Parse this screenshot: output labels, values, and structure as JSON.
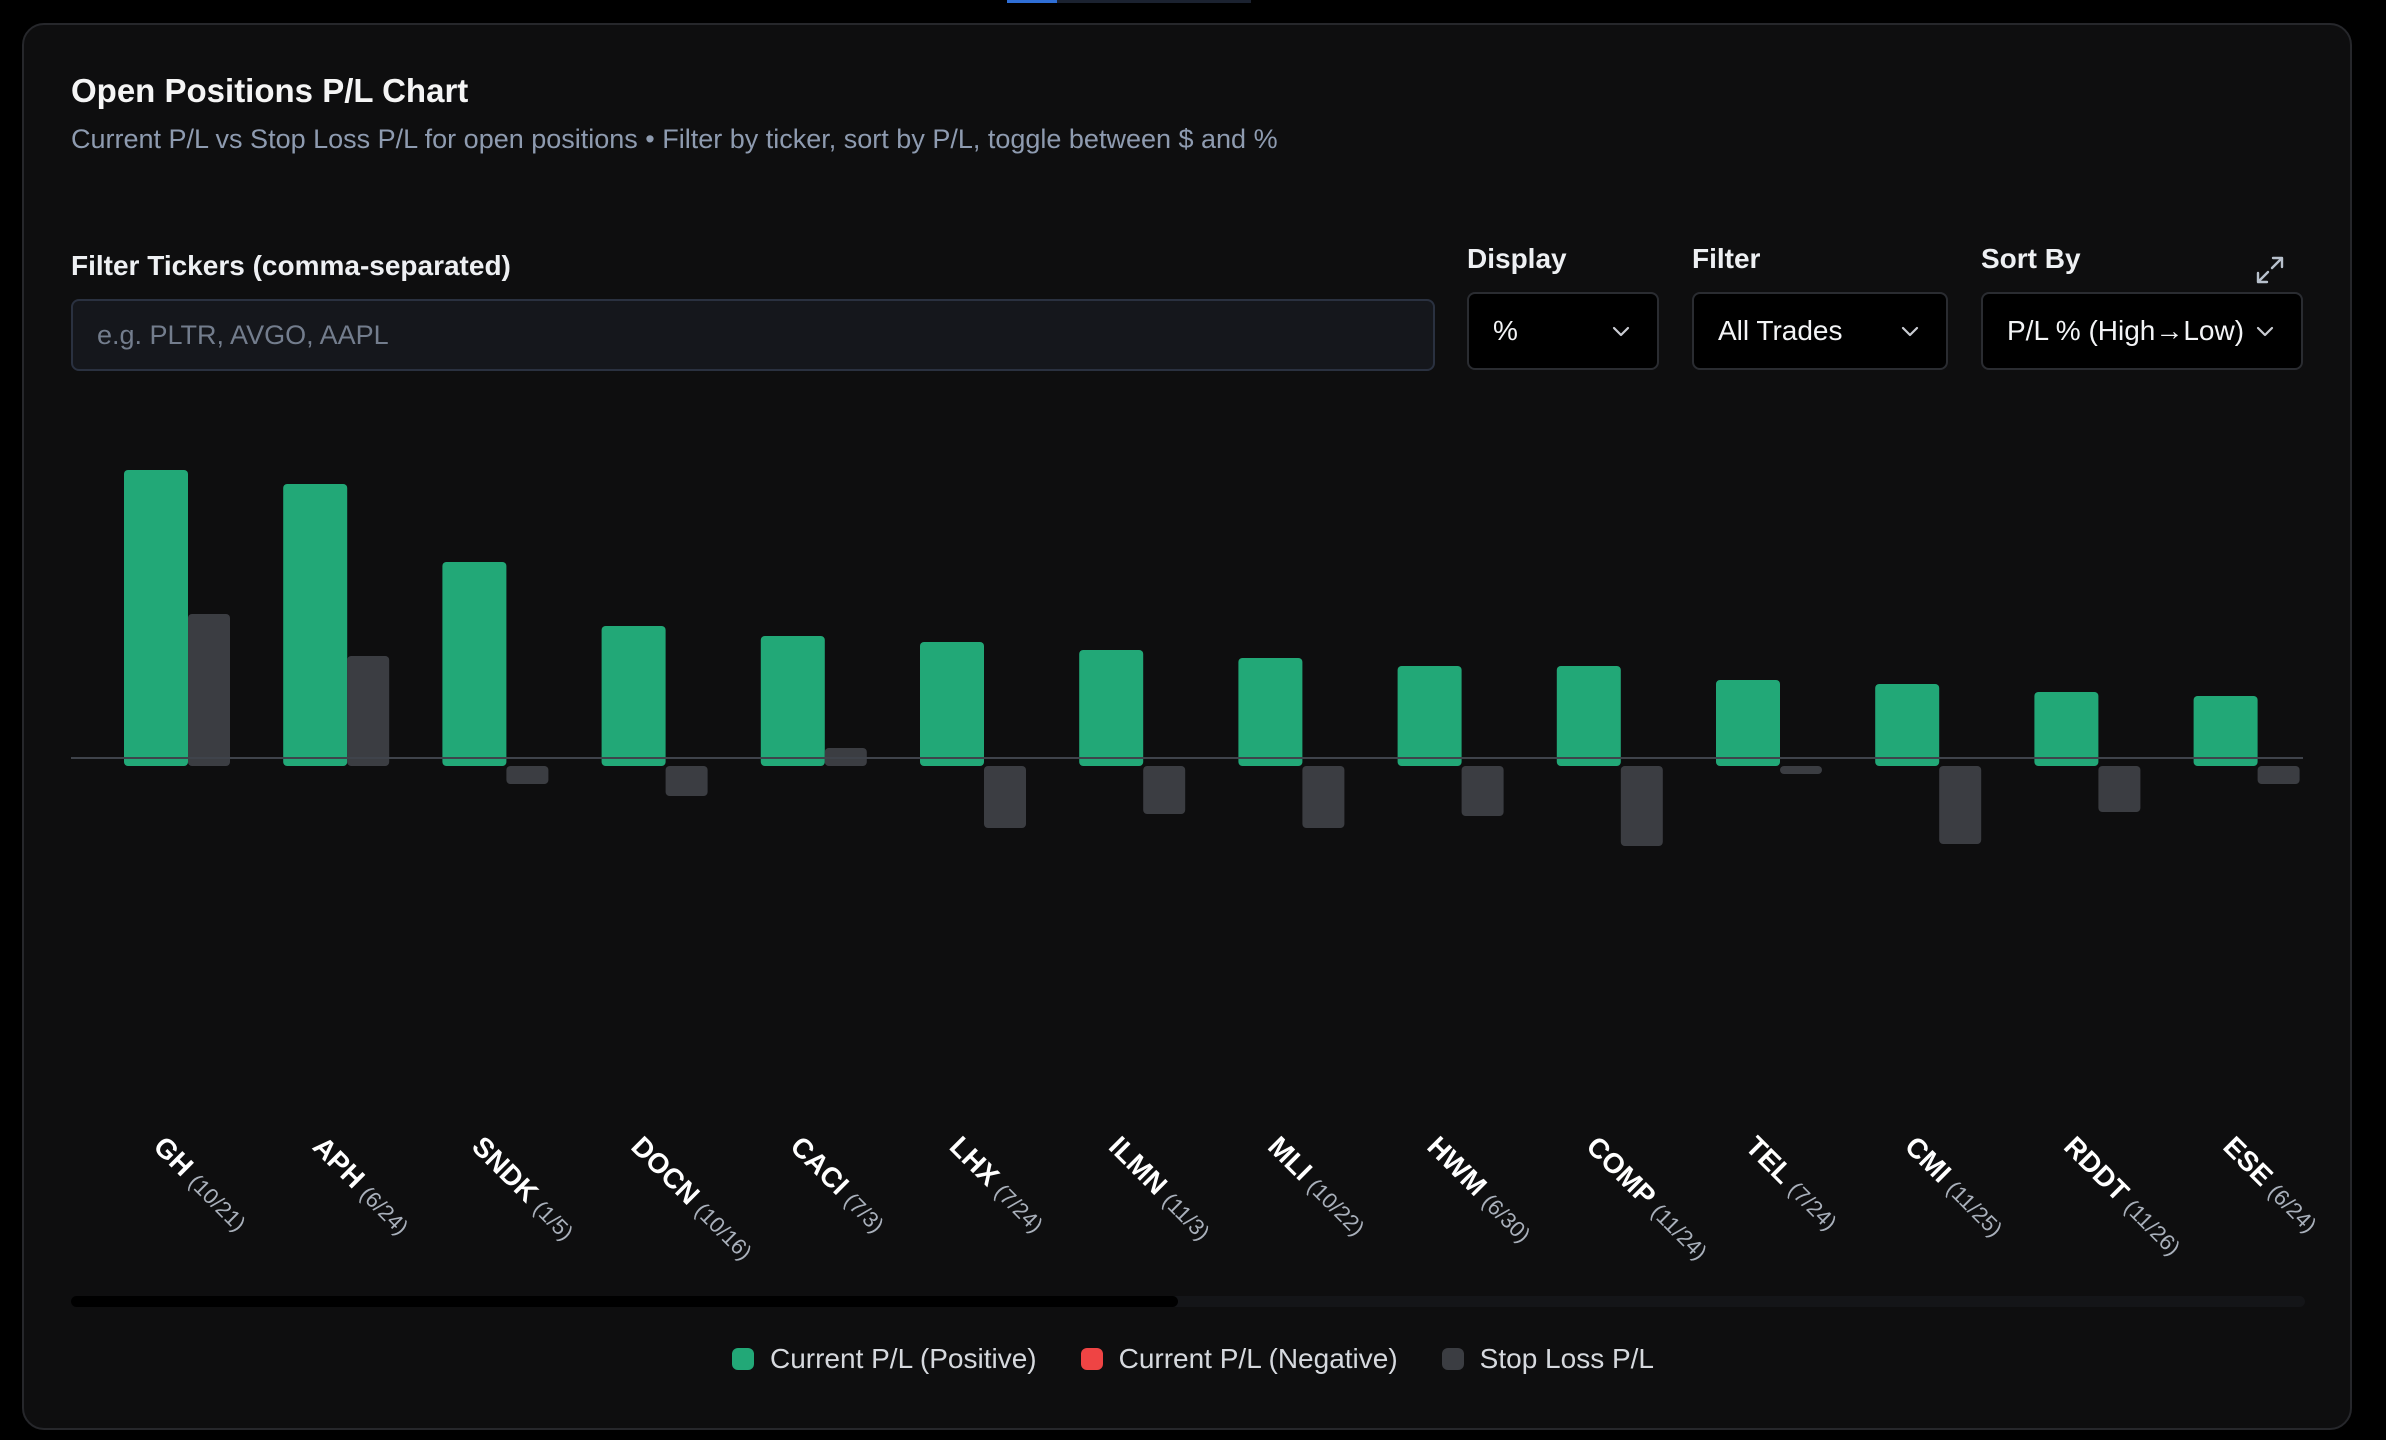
{
  "header": {
    "title": "Open Positions P/L Chart",
    "subtitle": "Current P/L vs Stop Loss P/L for open positions • Filter by ticker, sort by P/L, toggle between $ and %"
  },
  "controls": {
    "ticker_filter": {
      "label": "Filter Tickers (comma-separated)",
      "placeholder": "e.g. PLTR, AVGO, AAPL",
      "value": ""
    },
    "display": {
      "label": "Display",
      "value": "%"
    },
    "filter": {
      "label": "Filter",
      "value": "All Trades"
    },
    "sort": {
      "label": "Sort By",
      "value": "P/L % (High→Low)"
    },
    "expand_icon": "expand-icon",
    "chevron_icon": "chevron-down-icon"
  },
  "chart_data": {
    "type": "bar",
    "title": "",
    "xlabel": "",
    "ylabel": "",
    "grid": false,
    "legend_position": "bottom-center",
    "categories": [
      {
        "ticker": "GH",
        "date": "(10/21)"
      },
      {
        "ticker": "APH",
        "date": "(6/24)"
      },
      {
        "ticker": "SNDK",
        "date": "(1/5)"
      },
      {
        "ticker": "DOCN",
        "date": "(10/16)"
      },
      {
        "ticker": "CACI",
        "date": "(7/3)"
      },
      {
        "ticker": "LHX",
        "date": "(7/24)"
      },
      {
        "ticker": "ILMN",
        "date": "(11/3)"
      },
      {
        "ticker": "MLI",
        "date": "(10/22)"
      },
      {
        "ticker": "HWM",
        "date": "(6/30)"
      },
      {
        "ticker": "COMP",
        "date": "(11/24)"
      },
      {
        "ticker": "TEL",
        "date": "(7/24)"
      },
      {
        "ticker": "CMI",
        "date": "(11/25)"
      },
      {
        "ticker": "RDDT",
        "date": "(11/26)"
      },
      {
        "ticker": "ESE",
        "date": "(6/24)"
      }
    ],
    "series": [
      {
        "name": "Current P/L (Positive)",
        "color": "#22a877",
        "values": [
          74,
          70.5,
          51,
          35,
          32.5,
          31,
          29,
          27,
          25,
          25,
          21.5,
          20.5,
          18.5,
          17.5
        ]
      },
      {
        "name": "Current P/L (Negative)",
        "color": "#ef4444",
        "values": [
          0,
          0,
          0,
          0,
          0,
          0,
          0,
          0,
          0,
          0,
          0,
          0,
          0,
          0
        ]
      },
      {
        "name": "Stop Loss P/L",
        "color": "#3b3d42",
        "values": [
          38,
          27.5,
          -4.5,
          -7.5,
          4.5,
          -15.5,
          -12,
          -15.5,
          -12.5,
          -20,
          -2,
          -19.5,
          -11.5,
          -4.5
        ]
      }
    ]
  },
  "legend": [
    {
      "label": "Current P/L (Positive)",
      "color": "#22a877"
    },
    {
      "label": "Current P/L (Negative)",
      "color": "#ef4444"
    },
    {
      "label": "Stop Loss P/L",
      "color": "#3b3d42"
    }
  ]
}
